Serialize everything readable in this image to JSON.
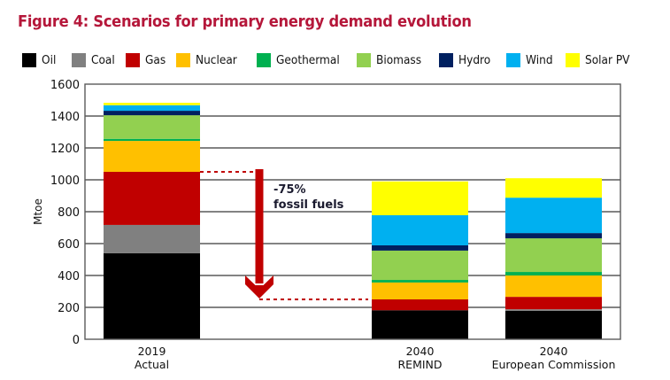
{
  "chart_data": {
    "type": "bar",
    "stacked": true,
    "title": "Figure 4: Scenarios for primary energy demand evolution",
    "xlabel": "",
    "ylabel": "Mtoe",
    "ylim": [
      0,
      1600
    ],
    "yticks": [
      0,
      200,
      400,
      600,
      800,
      1000,
      1200,
      1400,
      1600
    ],
    "grid": true,
    "legend_position": "top",
    "categories": [
      {
        "line1": "2019",
        "line2": "Actual"
      },
      {
        "line1": "2040",
        "line2": "REMIND"
      },
      {
        "line1": "2040",
        "line2": "European Commission"
      }
    ],
    "series": [
      {
        "name": "Oil",
        "color": "#000000",
        "values": [
          540,
          182,
          178
        ]
      },
      {
        "name": "Coal",
        "color": "#808080",
        "values": [
          177,
          0,
          10
        ]
      },
      {
        "name": "Gas",
        "color": "#c00000",
        "values": [
          333,
          68,
          78
        ]
      },
      {
        "name": "Nuclear",
        "color": "#ffc000",
        "values": [
          194,
          106,
          134
        ]
      },
      {
        "name": "Geothermal",
        "color": "#00b050",
        "values": [
          13,
          16,
          22
        ]
      },
      {
        "name": "Biomass",
        "color": "#92d050",
        "values": [
          148,
          184,
          211
        ]
      },
      {
        "name": "Hydro",
        "color": "#002060",
        "values": [
          28,
          33,
          33
        ]
      },
      {
        "name": "Wind",
        "color": "#00b0f0",
        "values": [
          35,
          189,
          222
        ]
      },
      {
        "name": "Solar PV",
        "color": "#ffff00",
        "values": [
          15,
          212,
          122
        ]
      }
    ],
    "annotations": [
      {
        "text_line1": "-75%",
        "text_line2": "fossil fuels",
        "type": "arrow-down",
        "from_value": 1050,
        "to_value": 250,
        "color": "#c00000"
      }
    ]
  },
  "colors": {
    "title": "#b5173a",
    "arrow": "#c00000",
    "grid": "#5a5a5a"
  }
}
